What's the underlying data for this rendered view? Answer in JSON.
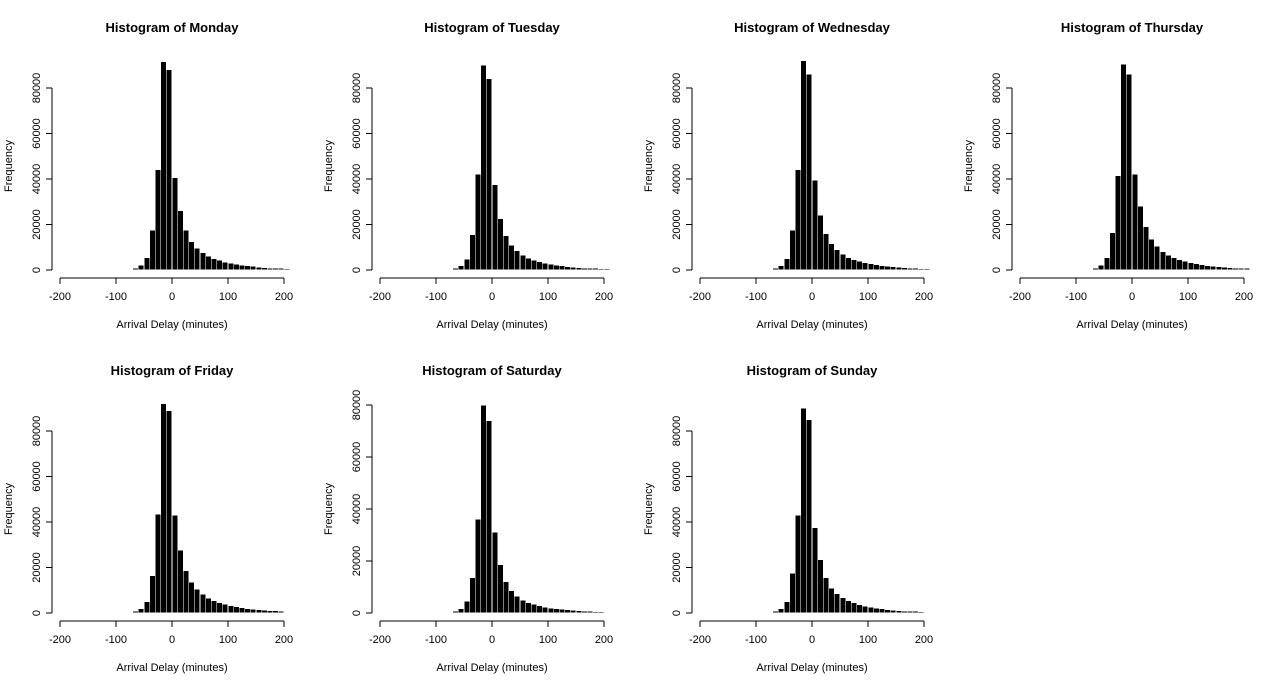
{
  "chart_data": [
    {
      "type": "bar",
      "title": "Histogram of Monday",
      "xlabel": "Arrival Delay (minutes)",
      "ylabel": "Frequency",
      "xlim": [
        -200,
        210
      ],
      "ylim": [
        0,
        90000
      ],
      "x_ticks": [
        -200,
        -100,
        0,
        100,
        200
      ],
      "y_ticks": [
        0,
        20000,
        40000,
        60000,
        80000
      ],
      "bin_width": 10,
      "bin_starts": [
        -100,
        -90,
        -80,
        -70,
        -60,
        -50,
        -40,
        -30,
        -20,
        -10,
        0,
        10,
        20,
        30,
        40,
        50,
        60,
        70,
        80,
        90,
        100,
        110,
        120,
        130,
        140,
        150,
        160,
        170,
        180,
        190,
        200
      ],
      "values": [
        100,
        200,
        400,
        900,
        2200,
        5500,
        17500,
        44000,
        91500,
        88000,
        40500,
        26000,
        17500,
        12500,
        9500,
        7500,
        6000,
        5000,
        4200,
        3500,
        2900,
        2500,
        2100,
        1800,
        1600,
        1300,
        1100,
        900,
        800,
        700,
        600
      ]
    },
    {
      "type": "bar",
      "title": "Histogram of Tuesday",
      "xlabel": "Arrival Delay (minutes)",
      "ylabel": "Frequency",
      "xlim": [
        -200,
        210
      ],
      "ylim": [
        0,
        90000
      ],
      "x_ticks": [
        -200,
        -100,
        0,
        100,
        200
      ],
      "y_ticks": [
        0,
        20000,
        40000,
        60000,
        80000
      ],
      "bin_width": 10,
      "bin_starts": [
        -90,
        -80,
        -70,
        -60,
        -50,
        -40,
        -30,
        -20,
        -10,
        0,
        10,
        20,
        30,
        40,
        50,
        60,
        70,
        80,
        90,
        100,
        110,
        120,
        130,
        140,
        150,
        160,
        170,
        180,
        190,
        200
      ],
      "values": [
        100,
        300,
        700,
        1800,
        4800,
        15500,
        42000,
        90000,
        84000,
        37500,
        22500,
        15000,
        11000,
        8500,
        6500,
        5200,
        4300,
        3600,
        3000,
        2500,
        2100,
        1800,
        1500,
        1300,
        1100,
        900,
        800,
        700,
        600,
        500
      ]
    },
    {
      "type": "bar",
      "title": "Histogram of Wednesday",
      "xlabel": "Arrival Delay (minutes)",
      "ylabel": "Frequency",
      "xlim": [
        -200,
        210
      ],
      "ylim": [
        0,
        90000
      ],
      "x_ticks": [
        -200,
        -100,
        0,
        100,
        200
      ],
      "y_ticks": [
        0,
        20000,
        40000,
        60000,
        80000
      ],
      "bin_width": 10,
      "bin_starts": [
        -90,
        -80,
        -70,
        -60,
        -50,
        -40,
        -30,
        -20,
        -10,
        0,
        10,
        20,
        30,
        40,
        50,
        60,
        70,
        80,
        90,
        100,
        110,
        120,
        130,
        140,
        150,
        160,
        170,
        180,
        190,
        200
      ],
      "values": [
        100,
        300,
        700,
        1900,
        5000,
        17500,
        44000,
        92000,
        86000,
        39500,
        24000,
        16000,
        11500,
        9000,
        7000,
        5500,
        4500,
        3800,
        3200,
        2700,
        2300,
        1900,
        1600,
        1400,
        1200,
        1000,
        850,
        750,
        650,
        550
      ]
    },
    {
      "type": "bar",
      "title": "Histogram of Thursday",
      "xlabel": "Arrival Delay (minutes)",
      "ylabel": "Frequency",
      "xlim": [
        -200,
        210
      ],
      "ylim": [
        0,
        90000
      ],
      "x_ticks": [
        -200,
        -100,
        0,
        100,
        200
      ],
      "y_ticks": [
        0,
        20000,
        40000,
        60000,
        80000
      ],
      "bin_width": 10,
      "bin_starts": [
        -100,
        -90,
        -80,
        -70,
        -60,
        -50,
        -40,
        -30,
        -20,
        -10,
        0,
        10,
        20,
        30,
        40,
        50,
        60,
        70,
        80,
        90,
        100,
        110,
        120,
        130,
        140,
        150,
        160,
        170,
        180,
        190,
        200
      ],
      "values": [
        100,
        200,
        400,
        900,
        2200,
        5500,
        16500,
        41500,
        90500,
        86000,
        42000,
        28000,
        19000,
        13500,
        10500,
        8000,
        6500,
        5400,
        4500,
        3800,
        3200,
        2700,
        2300,
        2000,
        1700,
        1400,
        1200,
        1000,
        900,
        800,
        700
      ]
    },
    {
      "type": "bar",
      "title": "Histogram of Friday",
      "xlabel": "Arrival Delay (minutes)",
      "ylabel": "Frequency",
      "xlim": [
        -200,
        210
      ],
      "ylim": [
        0,
        90000
      ],
      "x_ticks": [
        -200,
        -100,
        0,
        100,
        200
      ],
      "y_ticks": [
        0,
        20000,
        40000,
        60000,
        80000
      ],
      "bin_width": 10,
      "bin_starts": [
        -90,
        -80,
        -70,
        -60,
        -50,
        -40,
        -30,
        -20,
        -10,
        0,
        10,
        20,
        30,
        40,
        50,
        60,
        70,
        80,
        90,
        100,
        110,
        120,
        130,
        140,
        150,
        160,
        170,
        180,
        190
      ],
      "values": [
        100,
        300,
        700,
        1800,
        5000,
        16500,
        43500,
        92000,
        89000,
        43000,
        27500,
        18500,
        13500,
        10500,
        8200,
        6600,
        5500,
        4600,
        3900,
        3300,
        2800,
        2400,
        2000,
        1700,
        1500,
        1300,
        1100,
        950,
        800
      ]
    },
    {
      "type": "bar",
      "title": "Histogram of Saturday",
      "xlabel": "Arrival Delay (minutes)",
      "ylabel": "Frequency",
      "xlim": [
        -200,
        210
      ],
      "ylim": [
        0,
        80000
      ],
      "x_ticks": [
        -200,
        -100,
        0,
        100,
        200
      ],
      "y_ticks": [
        0,
        20000,
        40000,
        60000,
        80000
      ],
      "bin_width": 10,
      "bin_starts": [
        -110,
        -100,
        -90,
        -80,
        -70,
        -60,
        -50,
        -40,
        -30,
        -20,
        -10,
        0,
        10,
        20,
        30,
        40,
        50,
        60,
        70,
        80,
        90,
        100,
        110,
        120,
        130,
        140,
        150,
        160,
        170,
        180,
        190,
        200
      ],
      "values": [
        100,
        100,
        200,
        300,
        700,
        1700,
        4500,
        13500,
        36000,
        80000,
        74000,
        31000,
        18500,
        12000,
        8500,
        6500,
        5000,
        4000,
        3300,
        2800,
        2300,
        1900,
        1600,
        1400,
        1200,
        1000,
        850,
        700,
        600,
        500,
        450,
        400
      ]
    },
    {
      "type": "bar",
      "title": "Histogram of Sunday",
      "xlabel": "Arrival Delay (minutes)",
      "ylabel": "Frequency",
      "xlim": [
        -200,
        210
      ],
      "ylim": [
        0,
        90000
      ],
      "x_ticks": [
        -200,
        -100,
        0,
        100,
        200
      ],
      "y_ticks": [
        0,
        20000,
        40000,
        60000,
        80000
      ],
      "bin_width": 10,
      "bin_starts": [
        -100,
        -90,
        -80,
        -70,
        -60,
        -50,
        -40,
        -30,
        -20,
        -10,
        0,
        10,
        20,
        30,
        40,
        50,
        60,
        70,
        80,
        90,
        100,
        110,
        120,
        130,
        140,
        150,
        160,
        170,
        180,
        190
      ],
      "values": [
        100,
        200,
        300,
        800,
        2000,
        5000,
        17500,
        43000,
        90000,
        85000,
        37500,
        23500,
        15500,
        11000,
        8500,
        6700,
        5400,
        4500,
        3700,
        3100,
        2600,
        2200,
        1800,
        1500,
        1300,
        1100,
        900,
        800,
        700,
        600
      ]
    }
  ]
}
